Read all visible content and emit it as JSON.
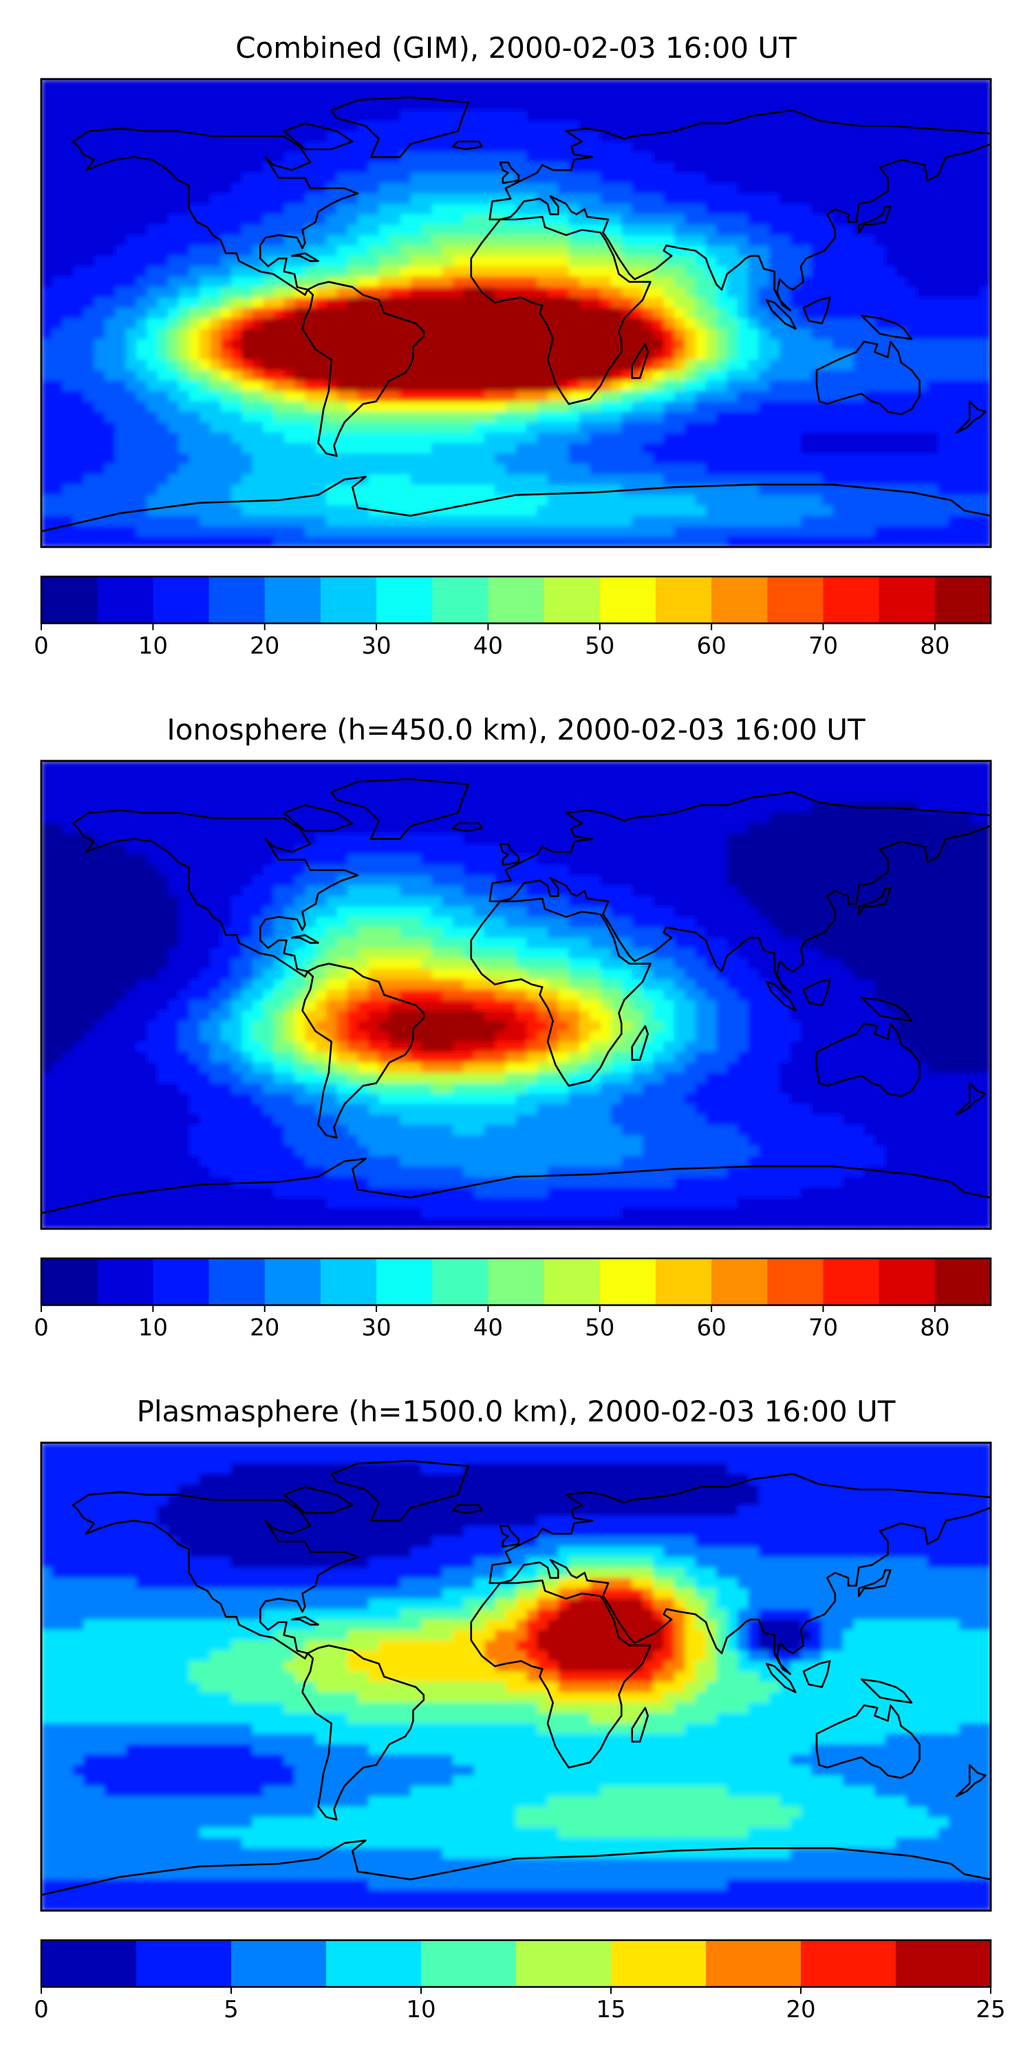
{
  "figure": {
    "panels": [
      {
        "title": "Combined (GIM), 2000-02-03 16:00 UT",
        "colorbar": {
          "min": 0,
          "max": 85,
          "levels": [
            0,
            5,
            10,
            15,
            20,
            25,
            30,
            35,
            40,
            45,
            50,
            55,
            60,
            65,
            70,
            75,
            80,
            85
          ],
          "ticks": [
            0,
            10,
            20,
            30,
            40,
            50,
            60,
            70,
            80
          ],
          "tick_labels": [
            "0",
            "10",
            "20",
            "30",
            "40",
            "50",
            "60",
            "70",
            "80"
          ]
        }
      },
      {
        "title": "Ionosphere  (h=450.0 km), 2000-02-03 16:00 UT",
        "colorbar": {
          "min": 0,
          "max": 85,
          "levels": [
            0,
            5,
            10,
            15,
            20,
            25,
            30,
            35,
            40,
            45,
            50,
            55,
            60,
            65,
            70,
            75,
            80,
            85
          ],
          "ticks": [
            0,
            10,
            20,
            30,
            40,
            50,
            60,
            70,
            80
          ],
          "tick_labels": [
            "0",
            "10",
            "20",
            "30",
            "40",
            "50",
            "60",
            "70",
            "80"
          ]
        }
      },
      {
        "title": "Plasmasphere (h=1500.0 km), 2000-02-03 16:00 UT",
        "colorbar": {
          "min": 0,
          "max": 25,
          "levels": [
            0,
            2.5,
            5,
            7.5,
            10,
            12.5,
            15,
            17.5,
            20,
            22.5,
            25
          ],
          "ticks": [
            0,
            5,
            10,
            15,
            20,
            25
          ],
          "tick_labels": [
            "0",
            "5",
            "10",
            "15",
            "20",
            "25"
          ]
        }
      }
    ]
  },
  "chart_data": [
    {
      "type": "heatmap",
      "title": "Combined (GIM), 2000-02-03 16:00 UT",
      "colormap": "jet",
      "xlim": [
        -180,
        180
      ],
      "ylim": [
        -90,
        90
      ],
      "vmin": 0,
      "vmax": 85,
      "background": 8,
      "blobs": [
        {
          "lon": -45,
          "lat": -12,
          "value": 76,
          "sx": 40,
          "sy": 10
        },
        {
          "lon": 5,
          "lat": -13,
          "value": 77,
          "sx": 35,
          "sy": 9
        },
        {
          "lon": -25,
          "lat": -14,
          "value": 72,
          "sx": 65,
          "sy": 16
        },
        {
          "lon": -20,
          "lat": 20,
          "value": 30,
          "sx": 40,
          "sy": 25
        },
        {
          "lon": 50,
          "lat": 15,
          "value": 25,
          "sx": 40,
          "sy": 15
        },
        {
          "lon": -60,
          "lat": -50,
          "value": 18,
          "sx": 60,
          "sy": 15
        },
        {
          "lon": -100,
          "lat": 0,
          "value": 12,
          "sx": 30,
          "sy": 20
        },
        {
          "lon": 100,
          "lat": 5,
          "value": -8,
          "sx": 15,
          "sy": 8
        },
        {
          "lon": 140,
          "lat": -20,
          "value": 8,
          "sx": 30,
          "sy": 12
        },
        {
          "lon": 0,
          "lat": -75,
          "value": 20,
          "sx": 120,
          "sy": 10
        }
      ]
    },
    {
      "type": "heatmap",
      "title": "Ionosphere  (h=450.0 km), 2000-02-03 16:00 UT",
      "colormap": "jet",
      "xlim": [
        -180,
        180
      ],
      "ylim": [
        -90,
        90
      ],
      "vmin": 0,
      "vmax": 85,
      "background": 6,
      "blobs": [
        {
          "lon": -25,
          "lat": -15,
          "value": 55,
          "sx": 55,
          "sy": 14
        },
        {
          "lon": -35,
          "lat": 0,
          "value": 25,
          "sx": 40,
          "sy": 30
        },
        {
          "lon": -60,
          "lat": 20,
          "value": 18,
          "sx": 25,
          "sy": 20
        },
        {
          "lon": 30,
          "lat": 5,
          "value": 15,
          "sx": 35,
          "sy": 20
        },
        {
          "lon": 10,
          "lat": -60,
          "value": 15,
          "sx": 80,
          "sy": 15
        },
        {
          "lon": -150,
          "lat": 10,
          "value": -4,
          "sx": 30,
          "sy": 25
        },
        {
          "lon": 130,
          "lat": 40,
          "value": -4,
          "sx": 40,
          "sy": 20
        },
        {
          "lon": 170,
          "lat": -5,
          "value": -3,
          "sx": 20,
          "sy": 20
        }
      ]
    },
    {
      "type": "heatmap",
      "title": "Plasmasphere (h=1500.0 km), 2000-02-03 16:00 UT",
      "colormap": "jet",
      "xlim": [
        -180,
        180
      ],
      "ylim": [
        -90,
        90
      ],
      "vmin": 0,
      "vmax": 25,
      "background": 4,
      "blobs": [
        {
          "lon": 0,
          "lat": 0,
          "value": 7,
          "sx": 200,
          "sy": 25
        },
        {
          "lon": 0,
          "lat": -60,
          "value": 4,
          "sx": 200,
          "sy": 12
        },
        {
          "lon": 30,
          "lat": 20,
          "value": 13,
          "sx": 25,
          "sy": 15
        },
        {
          "lon": 40,
          "lat": 15,
          "value": 8,
          "sx": 20,
          "sy": 20
        },
        {
          "lon": -40,
          "lat": 8,
          "value": 6,
          "sx": 35,
          "sy": 12
        },
        {
          "lon": 100,
          "lat": 15,
          "value": -10,
          "sx": 12,
          "sy": 7
        },
        {
          "lon": -80,
          "lat": 55,
          "value": -4,
          "sx": 45,
          "sy": 20
        },
        {
          "lon": 40,
          "lat": 70,
          "value": -4,
          "sx": 40,
          "sy": 10
        },
        {
          "lon": -120,
          "lat": -35,
          "value": -4,
          "sx": 30,
          "sy": 10
        },
        {
          "lon": 60,
          "lat": -50,
          "value": 4,
          "sx": 50,
          "sy": 10
        }
      ]
    }
  ]
}
